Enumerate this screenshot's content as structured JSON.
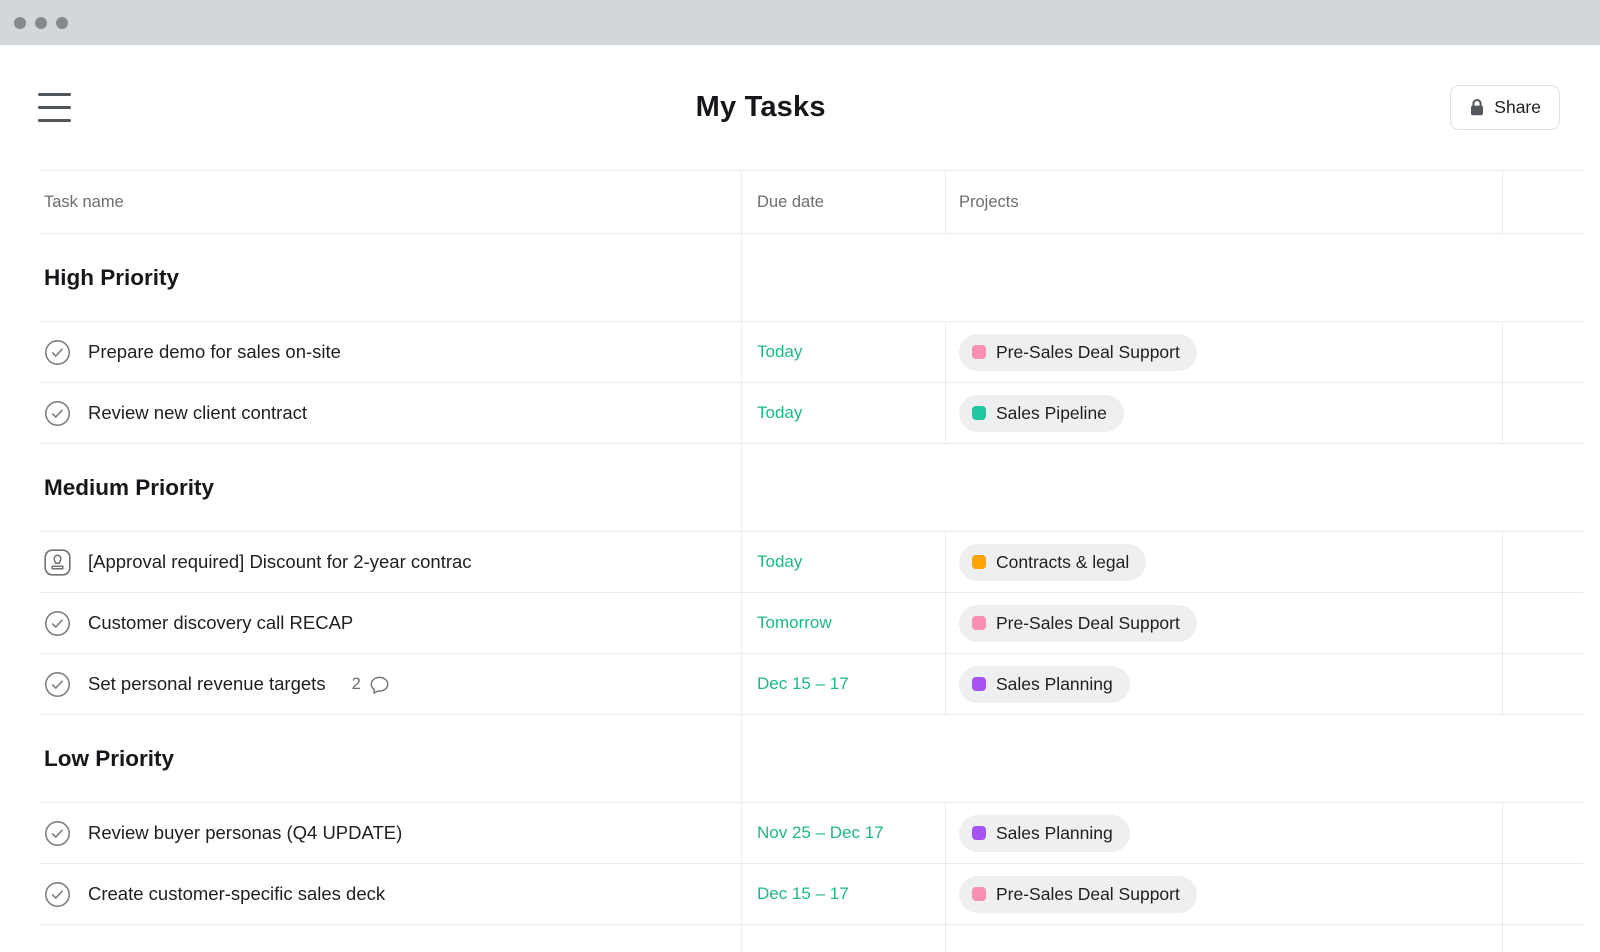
{
  "window": {
    "traffic_dots": 3
  },
  "header": {
    "title": "My Tasks",
    "share_label": "Share"
  },
  "colors": {
    "due_date_green": "#1fb884",
    "project_pink": "#f98fb1",
    "project_teal": "#1fc7a3",
    "project_orange": "#fda402",
    "project_purple": "#a753f2",
    "badge_bg": "#edeff1",
    "divider": "#e9ebed",
    "topbar_bg": "#d4d7da"
  },
  "table": {
    "columns": [
      {
        "label": "Task name"
      },
      {
        "label": "Due date"
      },
      {
        "label": "Projects"
      },
      {
        "label": ""
      }
    ],
    "sections": [
      {
        "title": "High Priority",
        "tasks": [
          {
            "icon": "check-circle",
            "name": "Prepare demo for sales on-site",
            "due": "Today",
            "project": {
              "name": "Pre-Sales Deal Support",
              "color": "#f98fb1"
            }
          },
          {
            "icon": "check-circle",
            "name": "Review new client contract",
            "due": "Today",
            "project": {
              "name": "Sales Pipeline",
              "color": "#1fc7a3"
            }
          }
        ]
      },
      {
        "title": "Medium Priority",
        "tasks": [
          {
            "icon": "stamp",
            "name": "[Approval required] Discount for 2-year contrac",
            "due": "Today",
            "project": {
              "name": "Contracts & legal",
              "color": "#fda402"
            }
          },
          {
            "icon": "check-circle",
            "name": "Customer discovery call RECAP",
            "due": "Tomorrow",
            "project": {
              "name": "Pre-Sales Deal Support",
              "color": "#f98fb1"
            }
          },
          {
            "icon": "check-circle",
            "name": "Set personal revenue targets",
            "due": "Dec 15 – 17",
            "comments": "2",
            "project": {
              "name": "Sales Planning",
              "color": "#a753f2"
            }
          }
        ]
      },
      {
        "title": "Low Priority",
        "tasks": [
          {
            "icon": "check-circle",
            "name": "Review buyer personas (Q4 UPDATE)",
            "due": "Nov 25 – Dec 17",
            "project": {
              "name": "Sales Planning",
              "color": "#a753f2"
            }
          },
          {
            "icon": "check-circle",
            "name": "Create customer-specific sales deck",
            "due": "Dec 15 – 17",
            "project": {
              "name": "Pre-Sales Deal Support",
              "color": "#f98fb1"
            }
          }
        ]
      }
    ]
  }
}
